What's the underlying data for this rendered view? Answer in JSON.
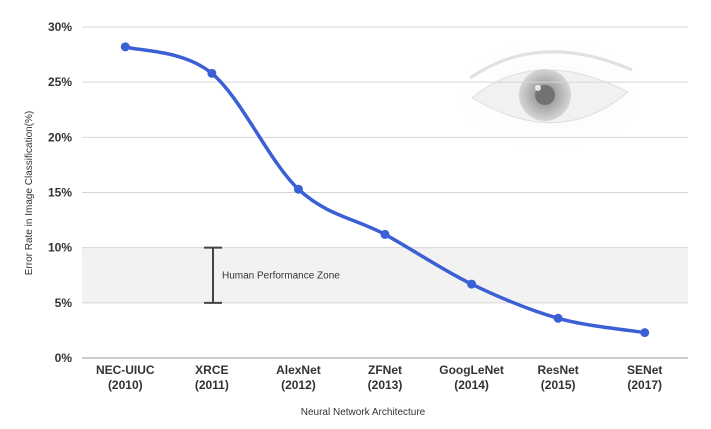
{
  "chart_data": {
    "type": "line",
    "title": "",
    "xlabel": "Neural Network Architecture",
    "ylabel": "Error Rate in Image Classification(%)",
    "ylim": [
      0,
      30
    ],
    "yticks": [
      {
        "value": 0,
        "label": "0%"
      },
      {
        "value": 5,
        "label": "5%"
      },
      {
        "value": 10,
        "label": "10%"
      },
      {
        "value": 15,
        "label": "15%"
      },
      {
        "value": 20,
        "label": "20%"
      },
      {
        "value": 25,
        "label": "25%"
      },
      {
        "value": 30,
        "label": "30%"
      }
    ],
    "categories": [
      {
        "name": "NEC-UIUC",
        "year": "(2010)"
      },
      {
        "name": "XRCE",
        "year": "(2011)"
      },
      {
        "name": "AlexNet",
        "year": "(2012)"
      },
      {
        "name": "ZFNet",
        "year": "(2013)"
      },
      {
        "name": "GoogLeNet",
        "year": "(2014)"
      },
      {
        "name": "ResNet",
        "year": "(2015)"
      },
      {
        "name": "SENet",
        "year": "(2017)"
      }
    ],
    "series": [
      {
        "values": [
          28.2,
          25.8,
          15.3,
          11.2,
          6.7,
          3.6,
          2.3
        ]
      }
    ],
    "grid": true,
    "human_zone": {
      "label": "Human Performance Zone",
      "range": [
        5,
        10
      ],
      "shade_range": [
        5,
        10
      ]
    },
    "colors": {
      "line": "#3b5fd4",
      "grid": "#d6d6d6",
      "zone": "#f2f2f2",
      "bar": "#444444",
      "text": "#333333"
    }
  }
}
